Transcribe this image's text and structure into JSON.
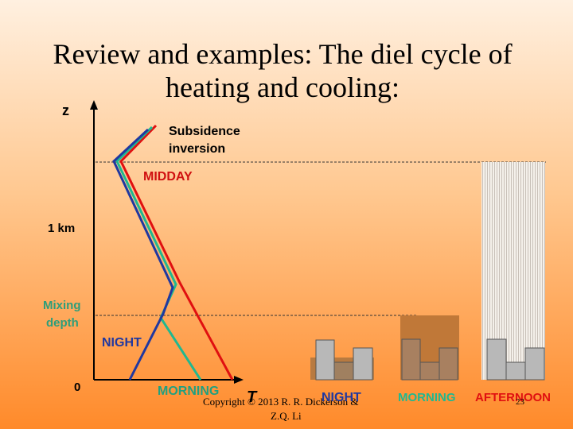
{
  "slide": {
    "title": [
      "Review and examples: The diel cycle of",
      "heating and cooling:"
    ],
    "axis": {
      "z": "z",
      "t": "T",
      "one_km": "1 km",
      "zero": "0",
      "mixing_depth": [
        "Mixing",
        "depth"
      ]
    },
    "annotations": {
      "subsidence": [
        "Subsidence",
        "inversion"
      ],
      "midday": "MIDDAY",
      "night": "NIGHT",
      "morning": "MORNING"
    },
    "panels": {
      "night": "NIGHT",
      "morning": "MORNING",
      "afternoon": "AFTERNOON"
    },
    "footer": {
      "copyright": [
        "Copyright © 2013 R. R. Dickerson &",
        "Z.Q. Li"
      ],
      "page": "23"
    }
  }
}
